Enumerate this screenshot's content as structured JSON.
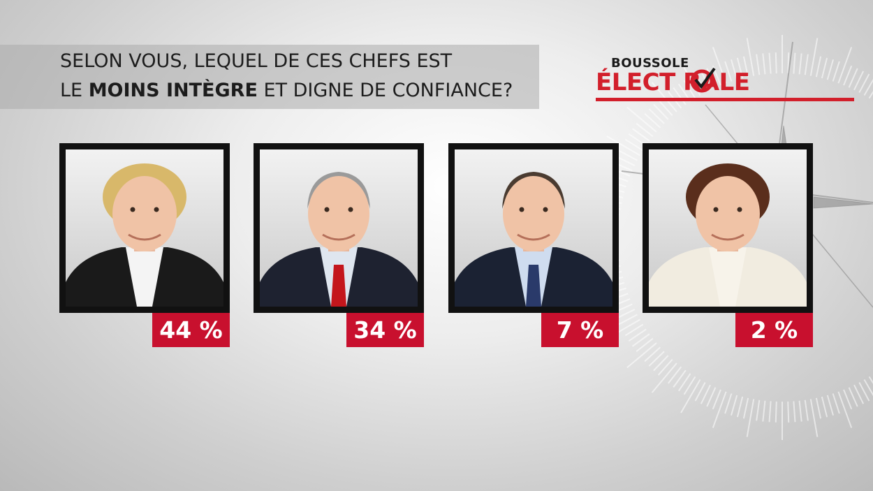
{
  "question": {
    "line1": "SELON VOUS, LEQUEL DE CES CHEFS EST",
    "line2_prefix": "LE ",
    "line2_bold": "MOINS INTÈGRE",
    "line2_suffix": " ET DIGNE DE CONFIANCE?"
  },
  "logo": {
    "top": "BOUSSOLE",
    "bottom": "ÉLECT  RALE"
  },
  "colors": {
    "accent_red": "#c8102e",
    "frame": "#111111"
  },
  "chart_data": {
    "type": "bar",
    "categories": [
      "",
      "",
      "",
      ""
    ],
    "values": [
      44,
      34,
      7,
      2
    ],
    "value_labels": [
      "44 %",
      "34 %",
      "7 %",
      "2 %"
    ]
  },
  "leaders": [
    {
      "percent_label": "44 %",
      "icon": "woman-portrait-icon",
      "hair": "#d8b86a",
      "jacket": "#1a1a1a",
      "shirt": "#f4f4f4",
      "tie": ""
    },
    {
      "percent_label": "34 %",
      "icon": "man-portrait-icon",
      "hair": "#9a9a9a",
      "jacket": "#1e2230",
      "shirt": "#dfe6ef",
      "tie": "#c4161c"
    },
    {
      "percent_label": "7 %",
      "icon": "man-portrait-icon",
      "hair": "#4a3b30",
      "jacket": "#1b2233",
      "shirt": "#cfdcef",
      "tie": "#2a3a6a"
    },
    {
      "percent_label": "2 %",
      "icon": "woman-portrait-icon",
      "hair": "#5a2e1c",
      "jacket": "#f1ece0",
      "shirt": "#f7f3ea",
      "tie": ""
    }
  ]
}
